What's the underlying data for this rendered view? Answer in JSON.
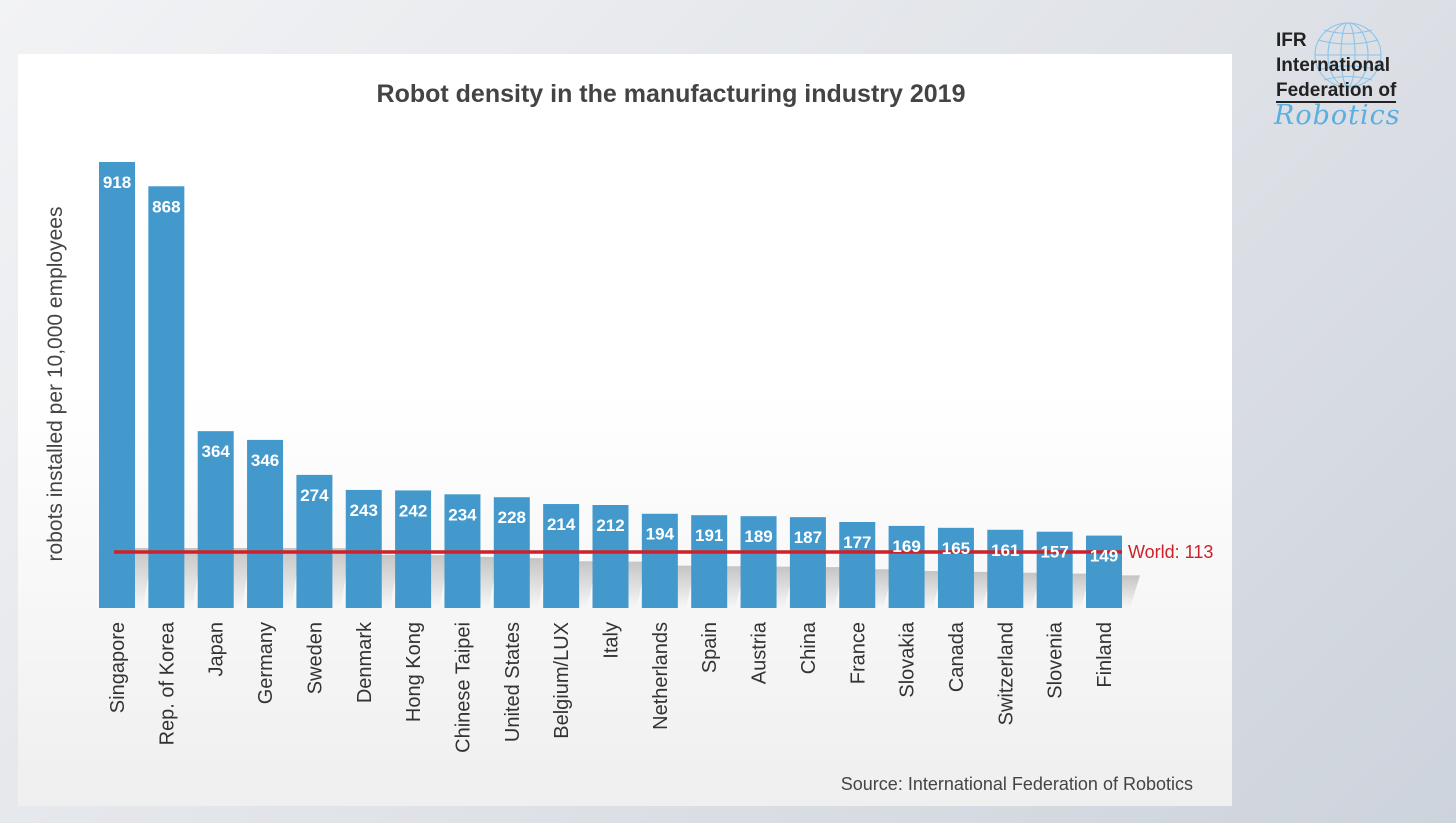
{
  "logo": {
    "line1": "IFR",
    "line2": "International",
    "line3": "Federation of",
    "script": "Robotics",
    "globe_icon": "globe-icon",
    "accent_color": "#5aaee0"
  },
  "source": "Source: International  Federation of Robotics",
  "chart_data": {
    "type": "bar",
    "title": "Robot density in the manufacturing industry 2019",
    "xlabel": "",
    "ylabel": "robots installed per 10,000 employees",
    "categories": [
      "Singapore",
      "Rep. of Korea",
      "Japan",
      "Germany",
      "Sweden",
      "Denmark",
      "Hong Kong",
      "Chinese Taipei",
      "United States",
      "Belgium/LUX",
      "Italy",
      "Netherlands",
      "Spain",
      "Austria",
      "China",
      "France",
      "Slovakia",
      "Canada",
      "Switzerland",
      "Slovenia",
      "Finland"
    ],
    "values": [
      918,
      868,
      364,
      346,
      274,
      243,
      242,
      234,
      228,
      214,
      212,
      194,
      191,
      189,
      187,
      177,
      169,
      165,
      161,
      157,
      149
    ],
    "reference_line": {
      "label": "World: 113",
      "value": 113,
      "color": "#cc2229"
    },
    "bar_color": "#4399cc",
    "ylim": [
      0,
      918
    ],
    "grid": false,
    "legend": "none"
  }
}
